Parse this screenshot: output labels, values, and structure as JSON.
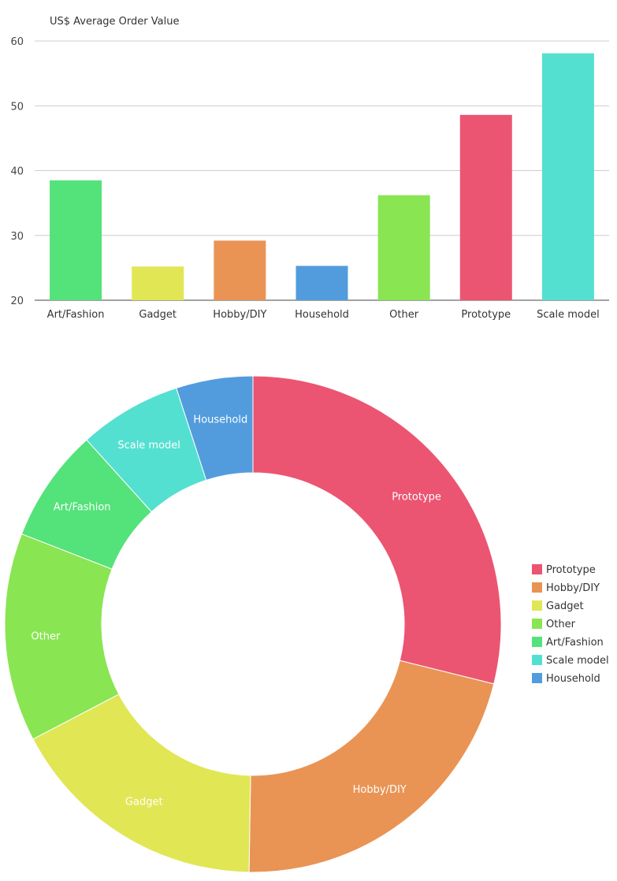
{
  "chart_data": [
    {
      "type": "bar",
      "title": "US$ Average Order Value",
      "xlabel": "",
      "ylabel": "",
      "ylim": [
        20,
        60
      ],
      "yticks": [
        20,
        30,
        40,
        50,
        60
      ],
      "grid": true,
      "categories": [
        "Art/Fashion",
        "Gadget",
        "Hobby/DIY",
        "Household",
        "Other",
        "Prototype",
        "Scale model"
      ],
      "values": [
        38.5,
        25.2,
        29.2,
        25.3,
        36.2,
        48.6,
        58.1
      ],
      "colors": [
        "#54E27A",
        "#E1E655",
        "#E99454",
        "#529CDE",
        "#89E552",
        "#EB5572",
        "#54E0D0"
      ]
    },
    {
      "type": "pie",
      "donut": true,
      "legend_position": "right",
      "labels": [
        "Prototype",
        "Hobby/DIY",
        "Gadget",
        "Other",
        "Art/Fashion",
        "Scale model",
        "Household"
      ],
      "values": [
        28.9,
        21.4,
        17.1,
        13.6,
        7.4,
        6.7,
        5.0
      ],
      "colors": [
        "#EB5572",
        "#E99454",
        "#E1E655",
        "#89E552",
        "#54E27A",
        "#54E0D0",
        "#529CDE"
      ]
    }
  ]
}
